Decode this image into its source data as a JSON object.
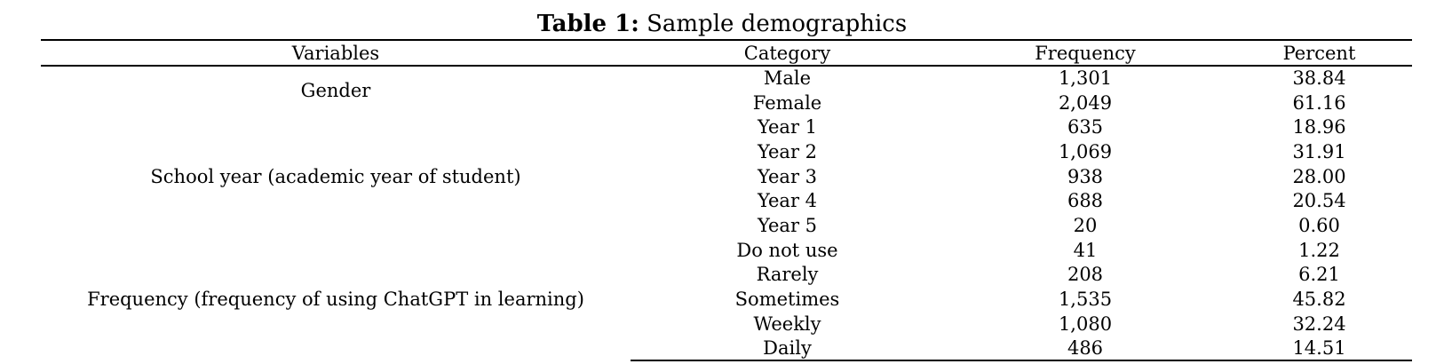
{
  "caption": {
    "label": "Table 1:",
    "title": "Sample demographics"
  },
  "table": {
    "headers": [
      "Variables",
      "Category",
      "Frequency",
      "Percent"
    ],
    "groups": [
      {
        "variable": "Gender",
        "rows": [
          {
            "category": "Male",
            "frequency": "1,301",
            "percent": "38.84"
          },
          {
            "category": "Female",
            "frequency": "2,049",
            "percent": "61.16"
          }
        ]
      },
      {
        "variable": "School year (academic year of student)",
        "rows": [
          {
            "category": "Year 1",
            "frequency": "635",
            "percent": "18.96"
          },
          {
            "category": "Year 2",
            "frequency": "1,069",
            "percent": "31.91"
          },
          {
            "category": "Year 3",
            "frequency": "938",
            "percent": "28.00"
          },
          {
            "category": "Year 4",
            "frequency": "688",
            "percent": "20.54"
          },
          {
            "category": "Year 5",
            "frequency": "20",
            "percent": "0.60"
          }
        ]
      },
      {
        "variable": "Frequency (frequency of using ChatGPT in learning)",
        "rows": [
          {
            "category": "Do not use",
            "frequency": "41",
            "percent": "1.22"
          },
          {
            "category": "Rarely",
            "frequency": "208",
            "percent": "6.21"
          },
          {
            "category": "Sometimes",
            "frequency": "1,535",
            "percent": "45.82"
          },
          {
            "category": "Weekly",
            "frequency": "1,080",
            "percent": "32.24"
          },
          {
            "category": "Daily",
            "frequency": "486",
            "percent": "14.51"
          }
        ]
      }
    ]
  }
}
